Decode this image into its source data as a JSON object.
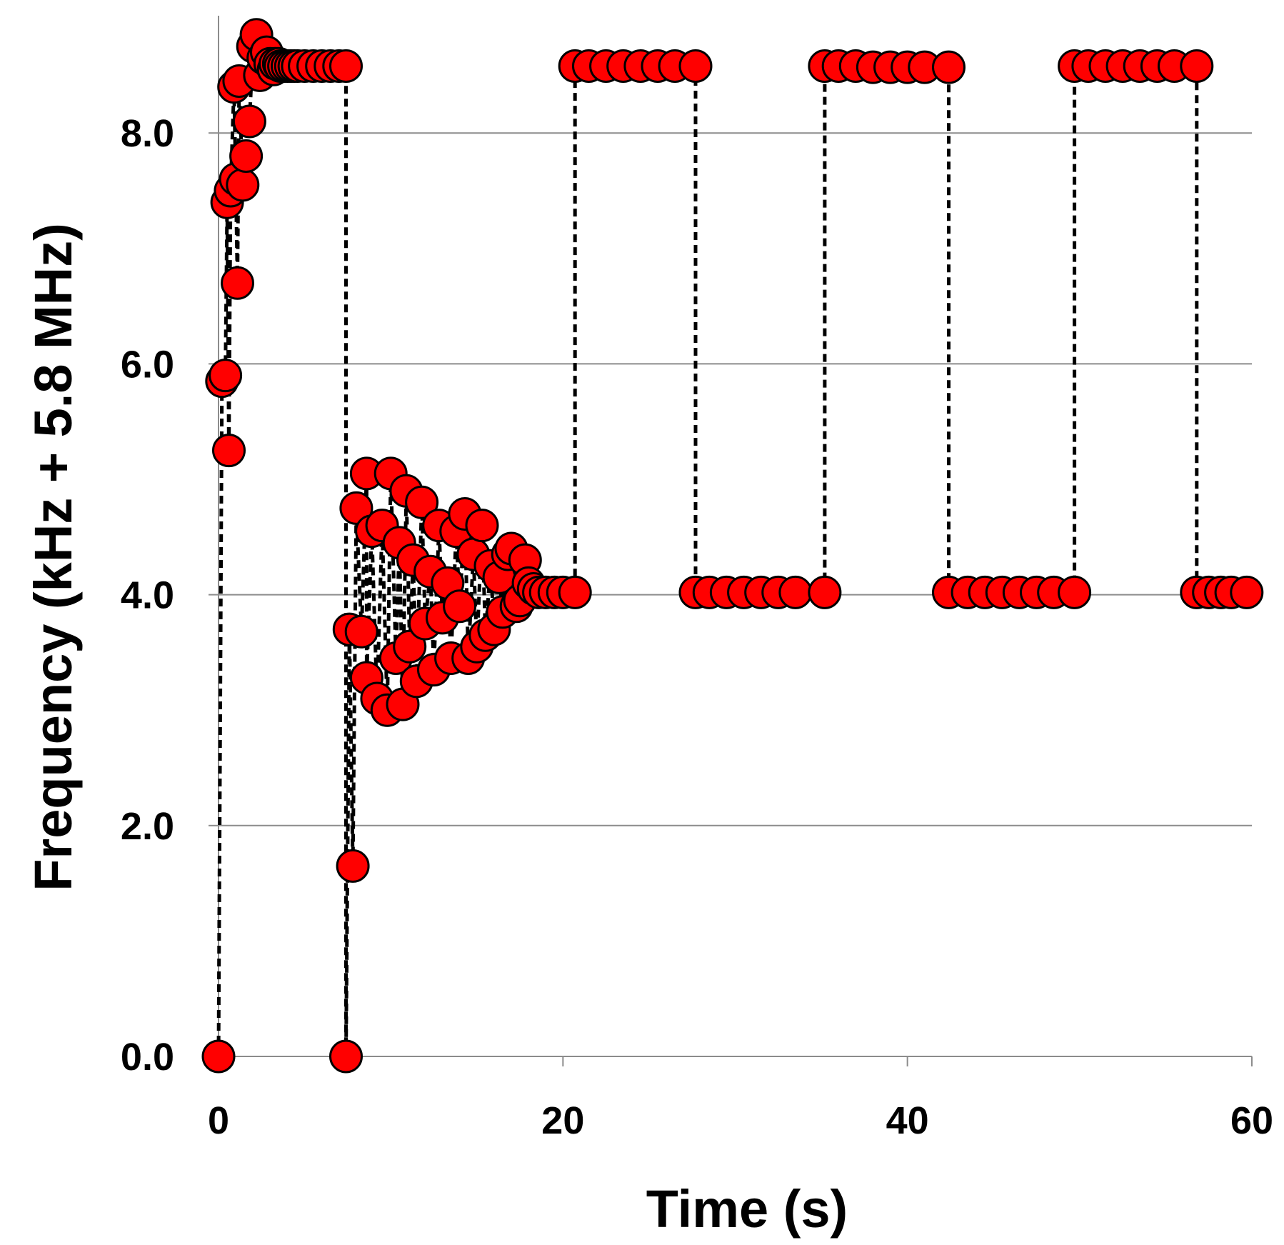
{
  "chart_data": {
    "type": "scatter",
    "title": "",
    "xlabel": "Time (s)",
    "ylabel": "Frequency (kHz + 5.8 MHz)",
    "xlim": [
      0,
      60
    ],
    "ylim": [
      0,
      8.8
    ],
    "x_ticks": [
      0,
      20,
      40,
      60
    ],
    "x_tick_labels": [
      "0",
      "20",
      "40",
      "60"
    ],
    "y_ticks": [
      0,
      2,
      4,
      6,
      8
    ],
    "y_tick_labels": [
      "0.0",
      "2.0",
      "4.0",
      "6.0",
      "8.0"
    ],
    "grid": "horizontal",
    "legend": "none",
    "colors": {
      "marker_fill": "#ff0000",
      "marker_edge": "#000000",
      "line": "#000000",
      "grid": "#8c8c8c"
    },
    "series": [
      {
        "name": "Frequency",
        "line_style": "dashed",
        "marker": "circle",
        "x": [
          0.0,
          0.2,
          0.4,
          0.5,
          0.6,
          0.7,
          0.9,
          1.0,
          1.1,
          1.2,
          1.4,
          1.6,
          1.8,
          2.0,
          2.2,
          2.4,
          2.6,
          2.8,
          3.0,
          3.2,
          3.3,
          3.5,
          3.6,
          3.8,
          4.0,
          4.2,
          4.4,
          4.6,
          5.0,
          5.5,
          6.0,
          6.5,
          7.0,
          7.4,
          7.4,
          7.6,
          7.8,
          8.0,
          8.3,
          8.6,
          8.6,
          8.9,
          9.2,
          9.5,
          9.8,
          10.0,
          10.3,
          10.5,
          10.7,
          10.9,
          11.1,
          11.3,
          11.5,
          11.8,
          12.0,
          12.3,
          12.5,
          12.8,
          13.0,
          13.3,
          13.5,
          13.8,
          14.0,
          14.3,
          14.5,
          14.8,
          15.0,
          15.3,
          15.5,
          15.8,
          16.0,
          16.3,
          16.5,
          16.8,
          17.0,
          17.3,
          17.5,
          17.8,
          18.0,
          18.3,
          18.6,
          19.0,
          19.5,
          20.0,
          20.7,
          20.7,
          21.5,
          22.5,
          23.5,
          24.5,
          25.5,
          26.5,
          27.7,
          27.7,
          28.5,
          29.5,
          30.5,
          31.5,
          32.5,
          33.5,
          35.2,
          35.2,
          36.0,
          37.0,
          38.0,
          39.0,
          40.0,
          41.0,
          42.4,
          42.4,
          43.5,
          44.5,
          45.5,
          46.5,
          47.5,
          48.5,
          49.7,
          49.7,
          50.5,
          51.5,
          52.5,
          53.5,
          54.5,
          55.5,
          56.8,
          56.8,
          57.5,
          58.2,
          58.8,
          59.7
        ],
        "y": [
          0.0,
          5.85,
          5.9,
          7.4,
          5.25,
          7.5,
          8.4,
          7.6,
          6.7,
          8.45,
          7.55,
          7.8,
          8.1,
          8.75,
          8.85,
          8.5,
          8.65,
          8.7,
          8.6,
          8.55,
          8.6,
          8.6,
          8.58,
          8.58,
          8.58,
          8.58,
          8.58,
          8.58,
          8.58,
          8.58,
          8.58,
          8.58,
          8.58,
          8.58,
          0.0,
          3.7,
          1.65,
          4.75,
          3.68,
          5.05,
          3.28,
          4.55,
          3.1,
          4.6,
          3.0,
          5.05,
          3.45,
          4.45,
          3.05,
          4.9,
          3.55,
          4.3,
          3.25,
          4.8,
          3.75,
          4.2,
          3.35,
          4.6,
          3.8,
          4.1,
          3.45,
          4.55,
          3.9,
          4.7,
          3.45,
          4.35,
          3.55,
          4.6,
          3.65,
          4.25,
          3.7,
          4.15,
          3.85,
          4.35,
          4.4,
          3.9,
          3.95,
          4.3,
          4.1,
          4.05,
          4.02,
          4.02,
          4.02,
          4.02,
          4.02,
          8.58,
          8.58,
          8.58,
          8.58,
          8.58,
          8.58,
          8.58,
          8.58,
          4.02,
          4.02,
          4.02,
          4.02,
          4.02,
          4.02,
          4.02,
          4.02,
          8.58,
          8.58,
          8.58,
          8.57,
          8.57,
          8.57,
          8.57,
          8.57,
          4.02,
          4.02,
          4.02,
          4.02,
          4.02,
          4.02,
          4.02,
          4.02,
          8.58,
          8.58,
          8.58,
          8.58,
          8.58,
          8.58,
          8.58,
          8.58,
          4.02,
          4.02,
          4.02,
          4.02,
          4.02
        ]
      }
    ]
  }
}
